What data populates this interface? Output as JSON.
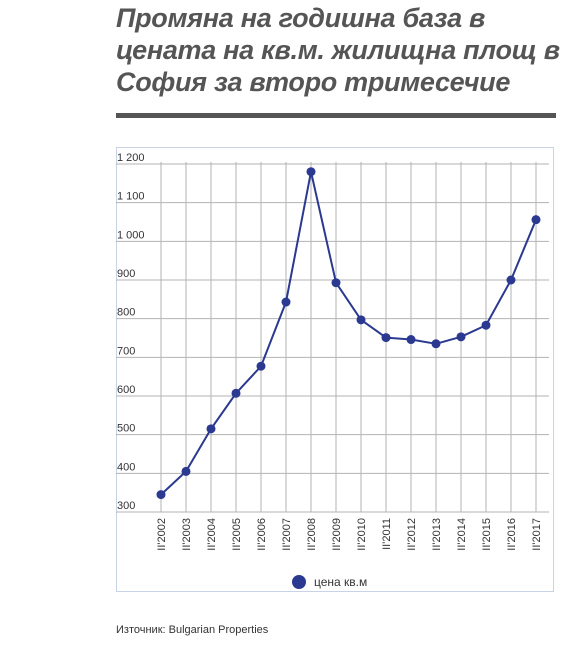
{
  "title": "Промяна на годишна база в цената на кв.м. жилищна площ в София за второ тримесечие",
  "source": "Източник: Bulgarian Properties",
  "colors": {
    "series": "#2b3990",
    "grid": "#b3b3b3",
    "title": "#555555"
  },
  "chart_data": {
    "type": "line",
    "categories": [
      "II'2002",
      "II'2003",
      "II'2004",
      "II'2005",
      "II'2006",
      "II'2007",
      "II'2008",
      "II'2009",
      "II'2010",
      "II'2011",
      "II'2012",
      "II'2013",
      "II'2014",
      "II'2015",
      "II'2016",
      "II'2017"
    ],
    "series": [
      {
        "name": "цена кв.м",
        "values": [
          345,
          405,
          515,
          607,
          677,
          843,
          1180,
          893,
          797,
          751,
          746,
          735,
          753,
          783,
          900,
          1056
        ]
      }
    ],
    "yticks": [
      "300",
      "400",
      "500",
      "600",
      "700",
      "800",
      "900",
      "1 000",
      "1 100",
      "1 200"
    ],
    "ylim": [
      300,
      1200
    ],
    "grid": true,
    "legend": "bottom-center"
  }
}
